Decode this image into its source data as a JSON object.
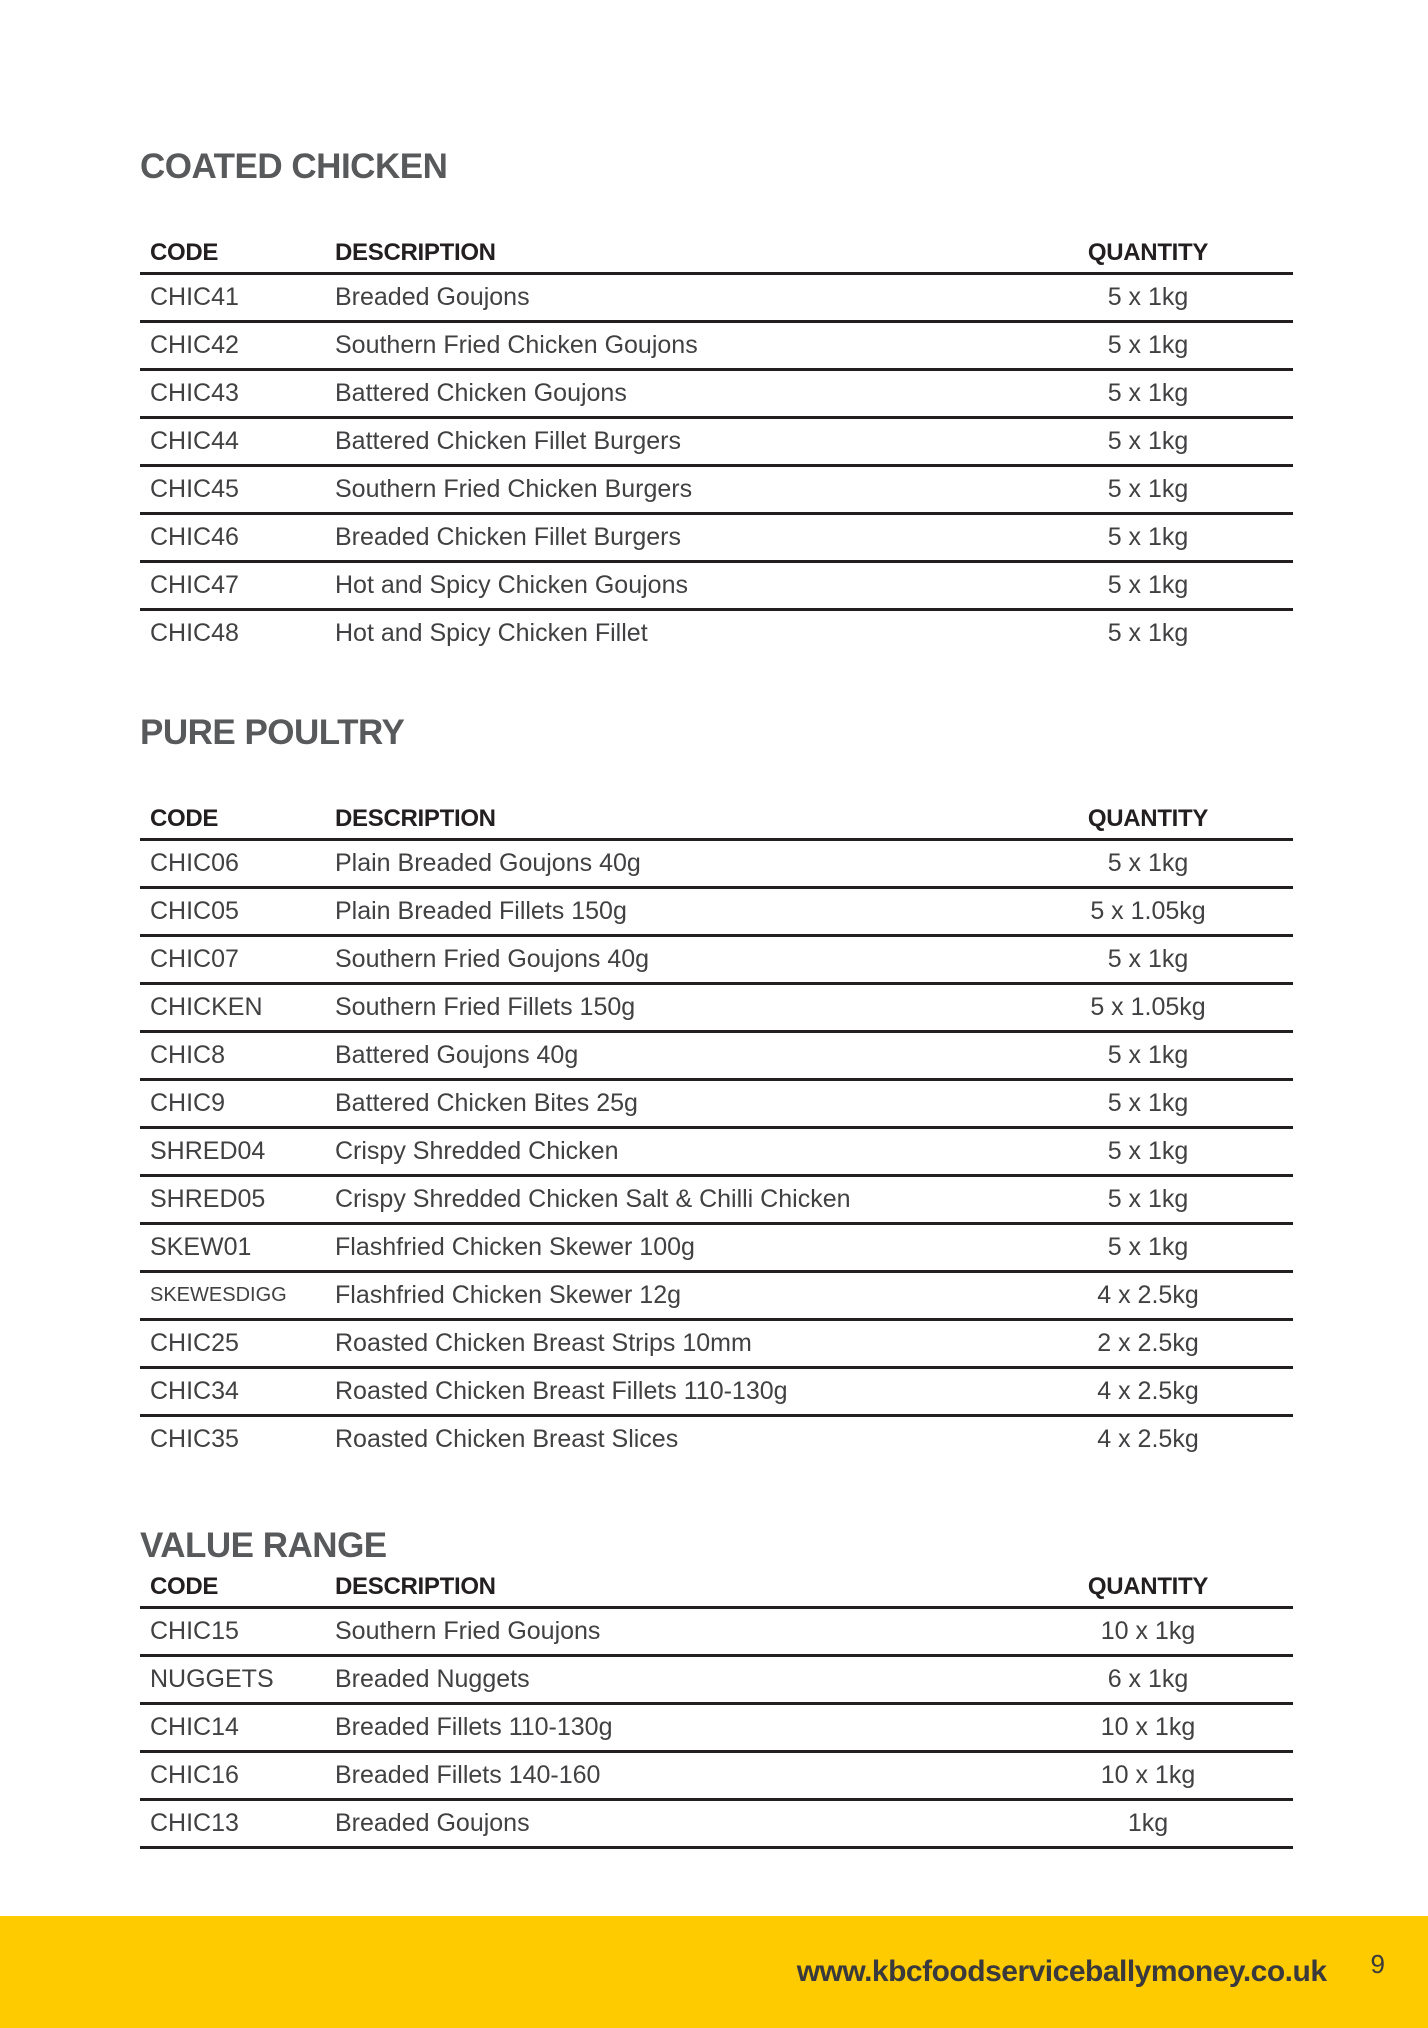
{
  "sections": [
    {
      "title": "COATED CHICKEN",
      "headers": {
        "code": "CODE",
        "description": "DESCRIPTION",
        "quantity": "QUANTITY"
      },
      "rows": [
        {
          "code": "CHIC41",
          "description": "Breaded Goujons",
          "quantity": "5 x 1kg"
        },
        {
          "code": "CHIC42",
          "description": "Southern Fried Chicken Goujons",
          "quantity": "5 x 1kg"
        },
        {
          "code": "CHIC43",
          "description": "Battered Chicken Goujons",
          "quantity": "5 x 1kg"
        },
        {
          "code": "CHIC44",
          "description": "Battered Chicken Fillet Burgers",
          "quantity": "5 x 1kg"
        },
        {
          "code": "CHIC45",
          "description": "Southern Fried Chicken Burgers",
          "quantity": "5 x 1kg"
        },
        {
          "code": "CHIC46",
          "description": "Breaded Chicken Fillet Burgers",
          "quantity": "5 x 1kg"
        },
        {
          "code": "CHIC47",
          "description": "Hot and Spicy Chicken Goujons",
          "quantity": "5 x 1kg"
        },
        {
          "code": "CHIC48",
          "description": "Hot and Spicy Chicken Fillet",
          "quantity": "5 x 1kg"
        }
      ]
    },
    {
      "title": "PURE POULTRY",
      "headers": {
        "code": "CODE",
        "description": "DESCRIPTION",
        "quantity": "QUANTITY"
      },
      "rows": [
        {
          "code": "CHIC06",
          "description": "Plain Breaded Goujons 40g",
          "quantity": "5 x 1kg"
        },
        {
          "code": "CHIC05",
          "description": "Plain Breaded Fillets 150g",
          "quantity": "5 x 1.05kg"
        },
        {
          "code": "CHIC07",
          "description": "Southern Fried Goujons 40g",
          "quantity": "5 x 1kg"
        },
        {
          "code": "CHICKEN",
          "description": "Southern Fried Fillets 150g",
          "quantity": "5 x 1.05kg"
        },
        {
          "code": "CHIC8",
          "description": "Battered Goujons 40g",
          "quantity": "5 x 1kg"
        },
        {
          "code": "CHIC9",
          "description": "Battered Chicken Bites 25g",
          "quantity": "5 x 1kg"
        },
        {
          "code": "SHRED04",
          "description": "Crispy Shredded Chicken",
          "quantity": "5 x 1kg"
        },
        {
          "code": "SHRED05",
          "description": "Crispy Shredded Chicken Salt & Chilli Chicken",
          "quantity": "5 x 1kg"
        },
        {
          "code": "SKEW01",
          "description": "Flashfried Chicken Skewer 100g",
          "quantity": "5 x 1kg"
        },
        {
          "code": "SKEWESDIGG",
          "description": "Flashfried Chicken Skewer 12g",
          "quantity": "4 x 2.5kg"
        },
        {
          "code": "CHIC25",
          "description": "Roasted Chicken Breast Strips 10mm",
          "quantity": "2 x 2.5kg"
        },
        {
          "code": "CHIC34",
          "description": "Roasted Chicken Breast Fillets 110-130g",
          "quantity": "4 x 2.5kg"
        },
        {
          "code": "CHIC35",
          "description": "Roasted Chicken Breast Slices",
          "quantity": "4 x 2.5kg"
        }
      ]
    },
    {
      "title": "VALUE RANGE",
      "headers": {
        "code": "CODE",
        "description": "DESCRIPTION",
        "quantity": "QUANTITY"
      },
      "rows": [
        {
          "code": "CHIC15",
          "description": "Southern Fried Goujons",
          "quantity": "10 x 1kg"
        },
        {
          "code": "NUGGETS",
          "description": "Breaded Nuggets",
          "quantity": "6 x 1kg"
        },
        {
          "code": "CHIC14",
          "description": "Breaded Fillets 110-130g",
          "quantity": "10 x 1kg"
        },
        {
          "code": "CHIC16",
          "description": "Breaded Fillets 140-160",
          "quantity": "10 x 1kg"
        },
        {
          "code": "CHIC13",
          "description": "Breaded Goujons",
          "quantity": "1kg"
        }
      ]
    }
  ],
  "footer": {
    "url": "www.kbcfoodserviceballymoney.co.uk",
    "page_number": "9"
  },
  "colors": {
    "accent_yellow": "#FECB00",
    "title_gray": "#58595B",
    "line_black": "#231F20",
    "body_text": "#414042"
  }
}
